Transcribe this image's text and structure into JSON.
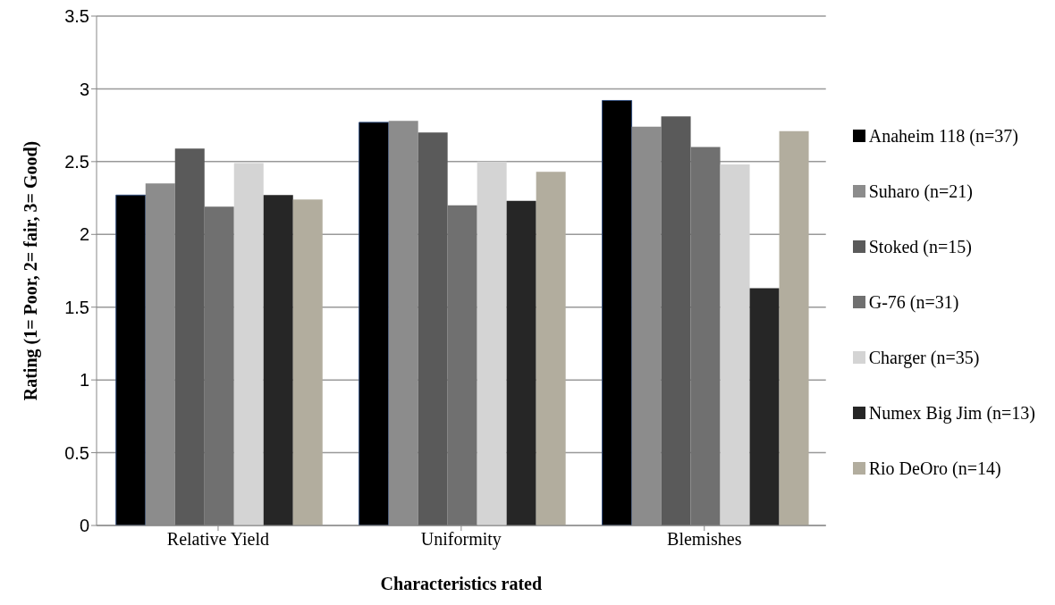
{
  "chart_data": {
    "type": "bar",
    "xlabel": "Characteristics  rated",
    "ylabel": "Rating (1= Poor, 2= fair, 3= Good)",
    "categories": [
      "Relative Yield",
      "Uniformity",
      "Blemishes"
    ],
    "series": [
      {
        "name": "Anaheim 118 (n=37)",
        "color": "#000000",
        "values": [
          2.27,
          2.77,
          2.92
        ]
      },
      {
        "name": "Suharo (n=21)",
        "color": "#8c8c8c",
        "values": [
          2.35,
          2.78,
          2.74
        ]
      },
      {
        "name": "Stoked (n=15)",
        "color": "#5a5a5a",
        "values": [
          2.59,
          2.7,
          2.81
        ]
      },
      {
        "name": "G-76 (n=31)",
        "color": "#707070",
        "values": [
          2.19,
          2.2,
          2.6
        ]
      },
      {
        "name": "Charger (n=35)",
        "color": "#d4d4d4",
        "values": [
          2.49,
          2.5,
          2.48
        ]
      },
      {
        "name": "Numex Big Jim (n=13)",
        "color": "#262626",
        "values": [
          2.27,
          2.23,
          1.63
        ]
      },
      {
        "name": "Rio DeOro (n=14)",
        "color": "#b2ad9e",
        "values": [
          2.24,
          2.43,
          2.71
        ]
      }
    ],
    "ylim": [
      0,
      3.5
    ],
    "yticks": [
      0,
      0.5,
      1,
      1.5,
      2,
      2.5,
      3,
      3.5
    ],
    "grid": "y",
    "legend": "right"
  }
}
